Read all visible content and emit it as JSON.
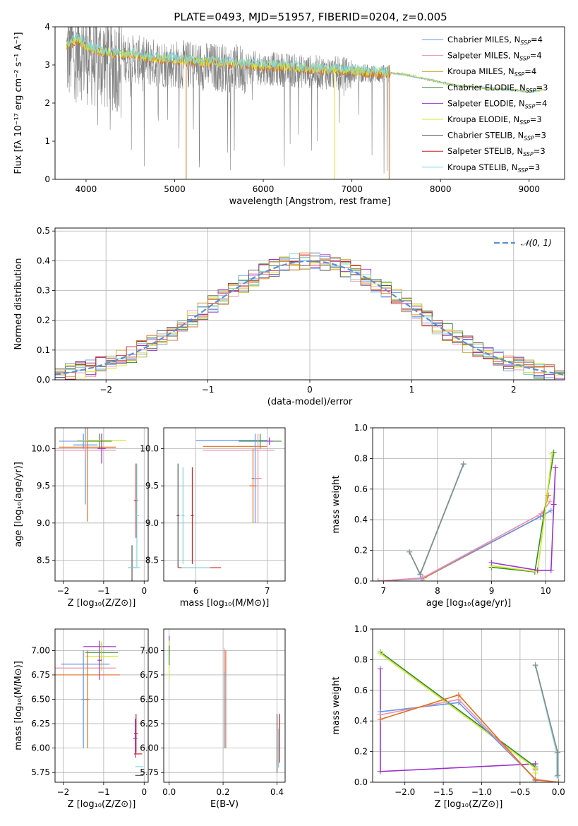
{
  "figure": {
    "title": "PLATE=0493, MJD=51957, FIBERID=0204, z=0.005"
  },
  "legend_entries": [
    {
      "label": "Chabrier MILES, N",
      "sub": "SSP",
      "suffix": "=4",
      "color": "#6495ed"
    },
    {
      "label": "Salpeter MILES, N",
      "sub": "SSP",
      "suffix": "=4",
      "color": "#f08fa8"
    },
    {
      "label": "Kroupa MILES, N",
      "sub": "SSP",
      "suffix": "=4",
      "color": "#b8a02a"
    },
    {
      "label": "Chabrier ELODIE, N",
      "sub": "SSP",
      "suffix": "=3",
      "color": "#2e8b2e"
    },
    {
      "label": "Salpeter ELODIE, N",
      "sub": "SSP",
      "suffix": "=4",
      "color": "#9932cc"
    },
    {
      "label": "Kroupa ELODIE, N",
      "sub": "SSP",
      "suffix": "=3",
      "color": "#d4e62a"
    },
    {
      "label": "Chabrier STELIB, N",
      "sub": "SSP",
      "suffix": "=3",
      "color": "#555555"
    },
    {
      "label": "Salpeter STELIB, N",
      "sub": "SSP",
      "suffix": "=3",
      "color": "#cc2020"
    },
    {
      "label": "Kroupa STELIB, N",
      "sub": "SSP",
      "suffix": "=3",
      "color": "#7fd6e0"
    }
  ],
  "chart_data": [
    {
      "id": "spectrum",
      "type": "line",
      "xlabel": "wavelength [Angstrom, rest frame]",
      "ylabel": "Flux [fλ 10⁻¹⁷ erg cm⁻² s⁻¹ A⁻¹]",
      "xlim": [
        3650,
        9400
      ],
      "ylim": [
        0,
        4
      ],
      "xticks": [
        4000,
        5000,
        6000,
        7000,
        8000,
        9000
      ],
      "yticks": [
        0,
        1,
        2,
        3,
        4
      ],
      "data_color": "#808080",
      "data_x_range": [
        3780,
        7430
      ],
      "model_x": [
        3780,
        3900,
        4000,
        4100,
        4300,
        4500,
        4700,
        5000,
        5300,
        5600,
        6000,
        6300,
        6600,
        7000,
        7400,
        7600,
        7800,
        8000,
        8200,
        8500,
        8800,
        9000,
        9150
      ],
      "model_y": [
        3.5,
        3.7,
        3.5,
        3.4,
        3.3,
        3.3,
        3.2,
        3.15,
        3.1,
        3.05,
        3.0,
        2.95,
        2.9,
        2.85,
        2.8,
        2.75,
        2.65,
        2.55,
        2.45,
        2.4,
        2.35,
        2.3,
        2.35
      ],
      "model_colors": [
        "#e07020",
        "#d4e62a",
        "#7fd6e0"
      ]
    },
    {
      "id": "residuals",
      "type": "histogram",
      "xlabel": "(data-model)/error",
      "ylabel": "Normed distribution",
      "xlim": [
        -2.5,
        2.5
      ],
      "ylim": [
        0,
        0.51
      ],
      "xticks": [
        -2,
        -1,
        0,
        1,
        2
      ],
      "yticks": [
        0,
        0.1,
        0.2,
        0.3,
        0.4,
        0.5
      ],
      "grid": true,
      "bin_width": 0.1,
      "gaussian_label": "𝒩(0, 1)",
      "gaussian_color": "#5b8fd8",
      "legend_position": "top-right"
    },
    {
      "id": "age_vs_Z",
      "type": "errorbar",
      "xlabel": "Z [log₁₀(Z/Z⊙)]",
      "ylabel": "age  [log₁₀(age/yr)]",
      "xlim": [
        -2.2,
        0.1
      ],
      "ylim": [
        8.22,
        10.28
      ],
      "xticks": [
        -2,
        -1,
        0
      ],
      "yticks": [
        8.5,
        9.0,
        9.5,
        10.0
      ],
      "grid": true,
      "bars": [
        {
          "x": -1.5,
          "xerr": 0.6,
          "y": 10.1,
          "yerr": 0.1,
          "color": "#6495ed"
        },
        {
          "x": -1.45,
          "xerr": 0.3,
          "y": 10.05,
          "yerr": 0.8,
          "color": "#6495ed"
        },
        {
          "x": -1.4,
          "xerr": 0.7,
          "y": 10.02,
          "yerr": 1.0,
          "color": "#e07020"
        },
        {
          "x": -1.45,
          "xerr": 0.75,
          "y": 9.98,
          "yerr": 0.1,
          "color": "#f08fa8"
        },
        {
          "x": -1.1,
          "xerr": 0.3,
          "y": 10.1,
          "yerr": 0.1,
          "color": "#2e8b2e"
        },
        {
          "x": -1.05,
          "xerr": 0.6,
          "y": 10.11,
          "yerr": 0.1,
          "color": "#d4e62a"
        },
        {
          "x": -1.05,
          "xerr": 0.1,
          "y": 10.0,
          "yerr": 0.2,
          "color": "#9932cc"
        },
        {
          "x": -0.3,
          "xerr": 0.1,
          "y": 8.4,
          "yerr": 0.3,
          "color": "#555555"
        },
        {
          "x": -0.25,
          "xerr": 0.15,
          "y": 8.4,
          "yerr": 0.0,
          "color": "#7fd6e0"
        },
        {
          "x": -0.2,
          "xerr": 0.05,
          "y": 9.3,
          "yerr": 0.5,
          "color": "#cc2020"
        },
        {
          "x": -0.18,
          "xerr": 0.05,
          "y": 9.1,
          "yerr": 0.7,
          "color": "#7fd6e0"
        }
      ]
    },
    {
      "id": "age_vs_mass",
      "type": "errorbar",
      "xlabel": "mass [log₁₀(M/M⊙)]",
      "ylabel": "",
      "xlim": [
        5.55,
        7.25
      ],
      "ylim": [
        8.22,
        10.28
      ],
      "xticks": [
        6,
        7
      ],
      "yticks": [
        8.5,
        9.0,
        9.5,
        10.0
      ],
      "grid": true,
      "bars": [
        {
          "x": 6.5,
          "xerr": 0.5,
          "y": 10.11,
          "yerr": 0.0,
          "color": "#6495ed"
        },
        {
          "x": 6.9,
          "xerr": 0.3,
          "y": 10.1,
          "yerr": 0.1,
          "color": "#2e8b2e"
        },
        {
          "x": 6.55,
          "xerr": 0.45,
          "y": 10.03,
          "yerr": 0.0,
          "color": "#e07020"
        },
        {
          "x": 6.6,
          "xerr": 0.5,
          "y": 9.98,
          "yerr": 0.0,
          "color": "#f08fa8"
        },
        {
          "x": 6.83,
          "xerr": 0.05,
          "y": 9.6,
          "yerr": 0.6,
          "color": "#6495ed"
        },
        {
          "x": 6.87,
          "xerr": 0.05,
          "y": 9.6,
          "yerr": 0.6,
          "color": "#f08fa8"
        },
        {
          "x": 6.8,
          "xerr": 0.05,
          "y": 9.5,
          "yerr": 0.5,
          "color": "#e07020"
        },
        {
          "x": 7.03,
          "xerr": 0.05,
          "y": 10.1,
          "yerr": 0.05,
          "color": "#9932cc"
        },
        {
          "x": 6.05,
          "xerr": 0.3,
          "y": 8.4,
          "yerr": 0.0,
          "color": "#cc2020"
        },
        {
          "x": 5.75,
          "xerr": 0.02,
          "y": 9.1,
          "yerr": 0.7,
          "color": "#555555"
        },
        {
          "x": 5.82,
          "xerr": 0.02,
          "y": 9.1,
          "yerr": 0.65,
          "color": "#7fd6e0"
        },
        {
          "x": 5.95,
          "xerr": 0.02,
          "y": 9.1,
          "yerr": 0.65,
          "color": "#cc2020"
        },
        {
          "x": 6.0,
          "xerr": 0.2,
          "y": 8.4,
          "yerr": 0.0,
          "color": "#7fd6e0"
        }
      ]
    },
    {
      "id": "massweight_vs_age",
      "type": "line",
      "xlabel": "age  [log₁₀(age/yr)]",
      "ylabel": "mass weight",
      "xlim": [
        6.8,
        10.35
      ],
      "ylim": [
        0,
        1
      ],
      "xticks": [
        7,
        8,
        9,
        10
      ],
      "yticks": [
        0.0,
        0.2,
        0.4,
        0.6,
        0.8,
        1.0
      ],
      "grid": true,
      "series": [
        {
          "color": "#7fd6e0",
          "x": [
            7.48,
            7.68,
            8.48
          ],
          "y": [
            0.19,
            0.04,
            0.76
          ]
        },
        {
          "color": "#888888",
          "x": [
            7.48,
            7.68,
            8.48
          ],
          "y": [
            0.19,
            0.045,
            0.765
          ]
        },
        {
          "color": "#e07020",
          "x": [
            6.9,
            7.75,
            9.95,
            10.05
          ],
          "y": [
            0.0,
            0.02,
            0.43,
            0.56
          ]
        },
        {
          "color": "#6495ed",
          "x": [
            6.9,
            7.7,
            9.9,
            10.1
          ],
          "y": [
            0.0,
            0.015,
            0.42,
            0.46
          ]
        },
        {
          "color": "#f08fa8",
          "x": [
            6.9,
            7.72,
            9.92,
            10.08
          ],
          "y": [
            0.0,
            0.02,
            0.44,
            0.52
          ]
        },
        {
          "color": "#2e8b2e",
          "x": [
            9.0,
            9.8,
            10.15
          ],
          "y": [
            0.09,
            0.06,
            0.84
          ]
        },
        {
          "color": "#d4e62a",
          "x": [
            9.0,
            9.85,
            10.12
          ],
          "y": [
            0.1,
            0.06,
            0.83
          ]
        },
        {
          "color": "#9932cc",
          "x": [
            9.0,
            9.85,
            10.1,
            10.15,
            10.18
          ],
          "y": [
            0.12,
            0.07,
            0.07,
            0.5,
            0.74
          ]
        }
      ]
    },
    {
      "id": "mass_vs_Z",
      "type": "errorbar",
      "xlabel": "Z [log₁₀(Z/Z⊙)]",
      "ylabel": "mass [log₁₀(M/M⊙)]",
      "xlim": [
        -2.2,
        0.1
      ],
      "ylim": [
        5.65,
        7.22
      ],
      "xticks": [
        -2,
        -1,
        0
      ],
      "yticks": [
        5.75,
        6.0,
        6.25,
        6.5,
        6.75,
        7.0
      ],
      "grid": true,
      "bars": [
        {
          "x": -1.1,
          "xerr": 0.4,
          "y": 7.04,
          "yerr": 0.0,
          "color": "#9932cc"
        },
        {
          "x": -1.05,
          "xerr": 0.4,
          "y": 6.98,
          "yerr": 0.1,
          "color": "#2e8b2e"
        },
        {
          "x": -1.05,
          "xerr": 0.4,
          "y": 6.94,
          "yerr": 0.15,
          "color": "#d4e62a"
        },
        {
          "x": -1.45,
          "xerr": 0.6,
          "y": 6.86,
          "yerr": 0.0,
          "color": "#6495ed"
        },
        {
          "x": -1.45,
          "xerr": 0.75,
          "y": 6.82,
          "yerr": 0.0,
          "color": "#f08fa8"
        },
        {
          "x": -1.4,
          "xerr": 0.8,
          "y": 6.75,
          "yerr": 0.0,
          "color": "#e07020"
        },
        {
          "x": -1.5,
          "xerr": 0.05,
          "y": 6.5,
          "yerr": 0.5,
          "color": "#6495ed"
        },
        {
          "x": -1.4,
          "xerr": 0.05,
          "y": 6.5,
          "yerr": 0.5,
          "color": "#e07020"
        },
        {
          "x": -1.1,
          "xerr": 0.05,
          "y": 6.9,
          "yerr": 0.2,
          "color": "#9932cc"
        },
        {
          "x": -0.2,
          "xerr": 0.05,
          "y": 6.15,
          "yerr": 0.2,
          "color": "#cc2020"
        },
        {
          "x": -0.22,
          "xerr": 0.05,
          "y": 6.1,
          "yerr": 0.2,
          "color": "#9932cc"
        },
        {
          "x": -0.15,
          "xerr": 0.1,
          "y": 5.94,
          "yerr": 0.0,
          "color": "#cc2020"
        },
        {
          "x": -0.12,
          "xerr": 0.1,
          "y": 5.81,
          "yerr": 0.0,
          "color": "#7fd6e0"
        },
        {
          "x": -0.12,
          "xerr": 0.1,
          "y": 5.72,
          "yerr": 0.0,
          "color": "#555555"
        }
      ]
    },
    {
      "id": "mass_vs_ebv",
      "type": "errorbar",
      "xlabel": "E(B-V)",
      "ylabel": "",
      "xlim": [
        -0.02,
        0.43
      ],
      "ylim": [
        5.65,
        7.22
      ],
      "xticks": [
        0.0,
        0.2,
        0.4
      ],
      "yticks": [
        5.75,
        6.0,
        6.25,
        6.5,
        6.75,
        7.0
      ],
      "grid": true,
      "bars": [
        {
          "x": 0.0,
          "xerr": 0.0,
          "y": 7.05,
          "yerr": 0.1,
          "color": "#9932cc"
        },
        {
          "x": 0.0,
          "xerr": 0.0,
          "y": 6.9,
          "yerr": 0.2,
          "color": "#d4e62a"
        },
        {
          "x": 0.0,
          "xerr": 0.0,
          "y": 6.95,
          "yerr": 0.1,
          "color": "#2e8b2e"
        },
        {
          "x": 0.205,
          "xerr": 0.0,
          "y": 6.5,
          "yerr": 0.5,
          "color": "#6495ed"
        },
        {
          "x": 0.21,
          "xerr": 0.0,
          "y": 6.5,
          "yerr": 0.5,
          "color": "#e07020"
        },
        {
          "x": 0.205,
          "xerr": 0.0,
          "y": 6.9,
          "yerr": 0.12,
          "color": "#f08fa8"
        },
        {
          "x": 0.4,
          "xerr": 0.0,
          "y": 6.05,
          "yerr": 0.3,
          "color": "#555555"
        },
        {
          "x": 0.41,
          "xerr": 0.0,
          "y": 6.1,
          "yerr": 0.25,
          "color": "#cc2020"
        },
        {
          "x": 0.405,
          "xerr": 0.0,
          "y": 6.0,
          "yerr": 0.2,
          "color": "#7fd6e0"
        }
      ]
    },
    {
      "id": "massweight_vs_Z",
      "type": "line",
      "xlabel": "Z [log₁₀(Z/Z⊙)]",
      "ylabel": "mass weight",
      "xlim": [
        -2.42,
        0.08
      ],
      "ylim": [
        0,
        1
      ],
      "xticks": [
        -2.0,
        -1.5,
        -1.0,
        -0.5,
        0.0
      ],
      "yticks": [
        0.0,
        0.2,
        0.4,
        0.6,
        0.8,
        1.0
      ],
      "grid": true,
      "series": [
        {
          "color": "#9932cc",
          "x": [
            -2.32,
            -2.32,
            -0.3,
            -0.3
          ],
          "y": [
            0.74,
            0.07,
            0.12,
            0.08
          ]
        },
        {
          "color": "#2e8b2e",
          "x": [
            -2.32,
            -0.3,
            -0.3
          ],
          "y": [
            0.85,
            0.1,
            0.06
          ]
        },
        {
          "color": "#d4e62a",
          "x": [
            -2.32,
            -0.3,
            -0.3
          ],
          "y": [
            0.84,
            0.09,
            0.06
          ]
        },
        {
          "color": "#6495ed",
          "x": [
            -2.32,
            -1.3,
            -0.3,
            -0.3
          ],
          "y": [
            0.46,
            0.52,
            0.02,
            0.01
          ]
        },
        {
          "color": "#f08fa8",
          "x": [
            -2.32,
            -1.3,
            -0.3,
            0.0
          ],
          "y": [
            0.44,
            0.54,
            0.02,
            0.0
          ]
        },
        {
          "color": "#e07020",
          "x": [
            -2.32,
            -1.3,
            -0.3,
            0.0
          ],
          "y": [
            0.41,
            0.57,
            0.015,
            0.0
          ]
        },
        {
          "color": "#7fd6e0",
          "x": [
            -0.3,
            -0.02,
            -0.02
          ],
          "y": [
            0.76,
            0.19,
            0.04
          ]
        },
        {
          "color": "#888888",
          "x": [
            -0.3,
            -0.01,
            -0.01
          ],
          "y": [
            0.765,
            0.195,
            0.045
          ]
        }
      ]
    }
  ]
}
